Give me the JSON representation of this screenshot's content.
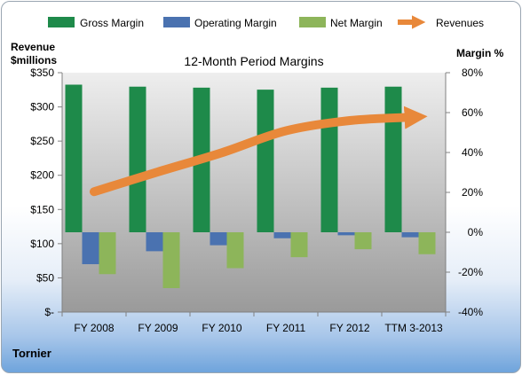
{
  "chart_data": {
    "type": "bar",
    "title": "12-Month Period Margins",
    "company": "Tornier",
    "categories": [
      "FY 2008",
      "FY 2009",
      "FY 2010",
      "FY 2011",
      "FY 2012",
      "TTM 3-2013"
    ],
    "left_axis": {
      "label_line1": "Revenue",
      "label_line2": "$millions",
      "range": [
        0,
        350
      ],
      "ticks": [
        0,
        50,
        100,
        150,
        200,
        250,
        300,
        350
      ],
      "tick_labels": [
        "$-",
        "$50",
        "$100",
        "$150",
        "$200",
        "$250",
        "$300",
        "$350"
      ]
    },
    "right_axis": {
      "label": "Margin %",
      "range": [
        -40,
        80
      ],
      "ticks": [
        -40,
        -20,
        0,
        20,
        40,
        60,
        80
      ],
      "tick_labels": [
        "-40%",
        "-20%",
        "0%",
        "20%",
        "40%",
        "60%",
        "80%"
      ]
    },
    "series": [
      {
        "name": "Gross Margin",
        "axis": "right",
        "kind": "bar",
        "color": "#1e8a4a",
        "values": [
          74,
          73,
          72.5,
          71.5,
          72.5,
          73
        ]
      },
      {
        "name": "Operating Margin",
        "axis": "right",
        "kind": "bar",
        "color": "#4a72b0",
        "values": [
          -16,
          -9.5,
          -6.5,
          -3,
          -1.5,
          -2.5
        ]
      },
      {
        "name": "Net Margin",
        "axis": "right",
        "kind": "bar",
        "color": "#8db55a",
        "values": [
          -21,
          -28,
          -18,
          -12.5,
          -8.5,
          -11
        ]
      },
      {
        "name": "Revenues",
        "axis": "left",
        "kind": "line",
        "color": "#e8883a",
        "values": [
          176,
          205,
          233,
          265,
          280,
          285
        ]
      }
    ],
    "legend_position": "top",
    "grid": false
  }
}
